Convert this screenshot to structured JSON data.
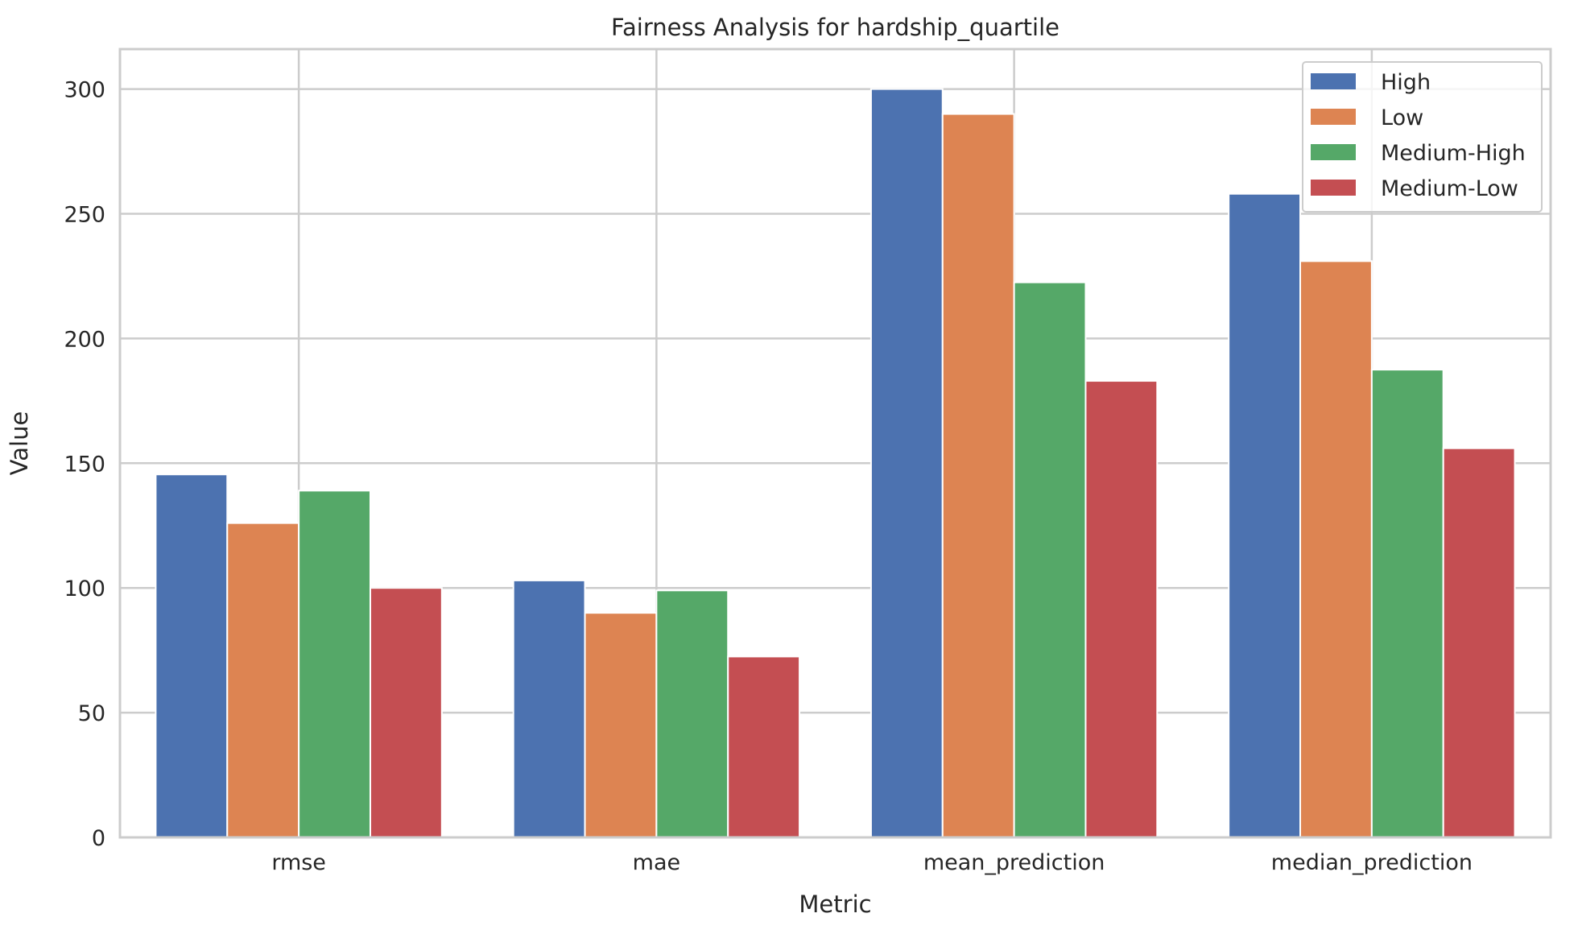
{
  "chart_data": {
    "type": "bar",
    "title": "Fairness Analysis for hardship_quartile",
    "xlabel": "Metric",
    "ylabel": "Value",
    "categories": [
      "rmse",
      "mae",
      "mean_prediction",
      "median_prediction"
    ],
    "series": [
      {
        "name": "High",
        "color": "#4c72b0",
        "values": [
          145.5,
          103.0,
          300.0,
          258.0
        ]
      },
      {
        "name": "Low",
        "color": "#dd8452",
        "values": [
          126.0,
          90.0,
          290.0,
          231.0
        ]
      },
      {
        "name": "Medium-High",
        "color": "#55a868",
        "values": [
          139.0,
          99.0,
          222.5,
          187.5
        ]
      },
      {
        "name": "Medium-Low",
        "color": "#c44e52",
        "values": [
          100.0,
          72.5,
          183.0,
          156.0
        ]
      }
    ],
    "ylim": [
      0,
      316
    ],
    "yticks": [
      0,
      50,
      100,
      150,
      200,
      250,
      300
    ],
    "grid": true,
    "legend_position": "top-right"
  }
}
